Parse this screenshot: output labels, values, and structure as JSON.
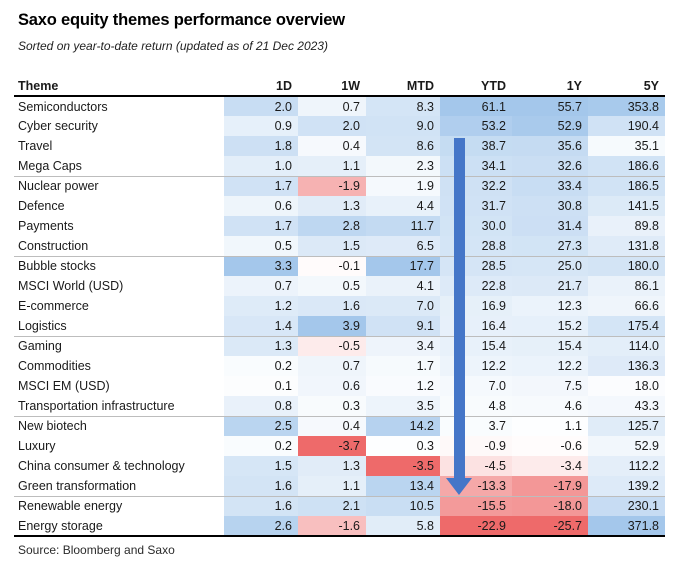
{
  "chart_data": {
    "type": "table",
    "heatmap": true,
    "title": "Saxo equity themes performance overview",
    "subtitle": "Sorted on year-to-date return (updated as of 21 Dec 2023)",
    "columns": [
      "Theme",
      "1D",
      "1W",
      "MTD",
      "YTD",
      "1Y",
      "5Y"
    ],
    "rows": [
      {
        "theme": "Semiconductors",
        "values": [
          2.0,
          0.7,
          8.3,
          61.1,
          55.7,
          353.8
        ]
      },
      {
        "theme": "Cyber security",
        "values": [
          0.9,
          2.0,
          9.0,
          53.2,
          52.9,
          190.4
        ]
      },
      {
        "theme": "Travel",
        "values": [
          1.8,
          0.4,
          8.6,
          38.7,
          35.6,
          35.1
        ]
      },
      {
        "theme": "Mega Caps",
        "values": [
          1.0,
          1.1,
          2.3,
          34.1,
          32.6,
          186.6
        ]
      },
      {
        "theme": "Nuclear power",
        "values": [
          1.7,
          -1.9,
          1.9,
          32.2,
          33.4,
          186.5
        ]
      },
      {
        "theme": "Defence",
        "values": [
          0.6,
          1.3,
          4.4,
          31.7,
          30.8,
          141.5
        ]
      },
      {
        "theme": "Payments",
        "values": [
          1.7,
          2.8,
          11.7,
          30.0,
          31.4,
          89.8
        ]
      },
      {
        "theme": "Construction",
        "values": [
          0.5,
          1.5,
          6.5,
          28.8,
          27.3,
          131.8
        ]
      },
      {
        "theme": "Bubble stocks",
        "values": [
          3.3,
          -0.1,
          17.7,
          28.5,
          25.0,
          180.0
        ]
      },
      {
        "theme": "MSCI World (USD)",
        "values": [
          0.7,
          0.5,
          4.1,
          22.8,
          21.7,
          86.1
        ]
      },
      {
        "theme": "E-commerce",
        "values": [
          1.2,
          1.6,
          7.0,
          16.9,
          12.3,
          66.6
        ]
      },
      {
        "theme": "Logistics",
        "values": [
          1.4,
          3.9,
          9.1,
          16.4,
          15.2,
          175.4
        ]
      },
      {
        "theme": "Gaming",
        "values": [
          1.3,
          -0.5,
          3.4,
          15.4,
          15.4,
          114.0
        ]
      },
      {
        "theme": "Commodities",
        "values": [
          0.2,
          0.7,
          1.7,
          12.2,
          12.2,
          136.3
        ]
      },
      {
        "theme": "MSCI EM (USD)",
        "values": [
          0.1,
          0.6,
          1.2,
          7.0,
          7.5,
          18.0
        ]
      },
      {
        "theme": "Transportation infrastructure",
        "values": [
          0.8,
          0.3,
          3.5,
          4.8,
          4.6,
          43.3
        ]
      },
      {
        "theme": "New biotech",
        "values": [
          2.5,
          0.4,
          14.2,
          3.7,
          1.1,
          125.7
        ]
      },
      {
        "theme": "Luxury",
        "values": [
          0.2,
          -3.7,
          0.3,
          -0.9,
          -0.6,
          52.9
        ]
      },
      {
        "theme": "China consumer & technology",
        "values": [
          1.5,
          1.3,
          -3.5,
          -4.5,
          -3.4,
          112.2
        ]
      },
      {
        "theme": "Green transformation",
        "values": [
          1.6,
          1.1,
          13.4,
          -13.3,
          -17.9,
          139.2
        ]
      },
      {
        "theme": "Renewable energy",
        "values": [
          1.6,
          2.1,
          10.5,
          -15.5,
          -18.0,
          230.1
        ]
      },
      {
        "theme": "Energy storage",
        "values": [
          2.6,
          -1.6,
          5.8,
          -22.9,
          -25.7,
          371.8
        ]
      }
    ],
    "value_format": "one_decimal",
    "source": "Source: Bloomberg and Saxo",
    "colors": {
      "positive_scale_max": "#a4c7eb",
      "negative_scale_max": "#ee6a6a",
      "scale_min": "#ffffff",
      "arrow": "#4576c8",
      "separator": "#bdbdbd",
      "rule": "#000000"
    },
    "color_scaling": "per-column, intensity proportional to value vs column max (blue) or column min (red)",
    "annotation": {
      "icon": "down-arrow-icon",
      "column": "YTD",
      "meaning": "sorted descending by YTD"
    }
  }
}
